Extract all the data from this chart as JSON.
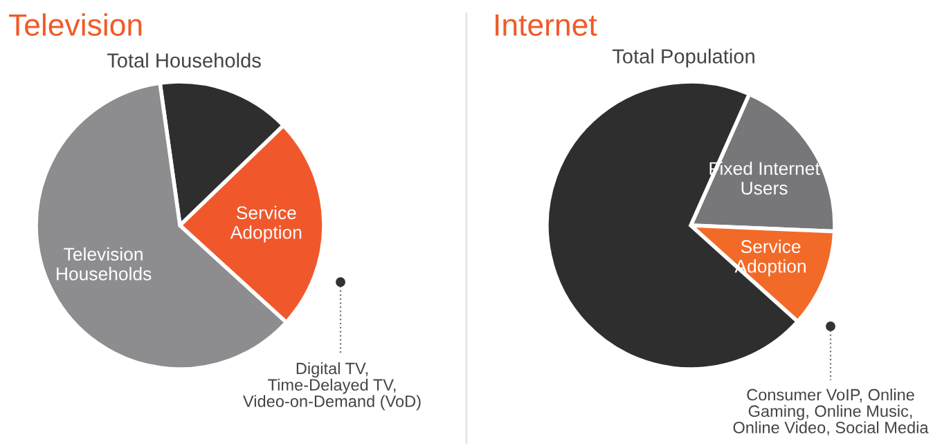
{
  "chart_data": [
    {
      "type": "pie",
      "title": "Television",
      "subtitle": "Total Households",
      "categories": [
        null,
        "Service Adoption",
        "Television Households"
      ],
      "values": [
        15,
        24,
        61
      ],
      "colors": [
        "#2e2e2f",
        "#f0582c",
        "#8d8d90"
      ],
      "annotations": [
        "Digital TV,\nTime-Delayed TV,\nVideo-on-Demand (VoD)"
      ]
    },
    {
      "type": "pie",
      "title": "Internet",
      "subtitle": "Total Population",
      "categories": [
        "Fixed Internet Users",
        "Service Adoption",
        null
      ],
      "values": [
        19,
        11,
        70
      ],
      "colors": [
        "#77777a",
        "#f26a28",
        "#2e2e2f"
      ],
      "annotations": [
        "Consumer VoIP, Online\nGaming, Online Music,\nOnline Video, Social Media"
      ]
    }
  ]
}
